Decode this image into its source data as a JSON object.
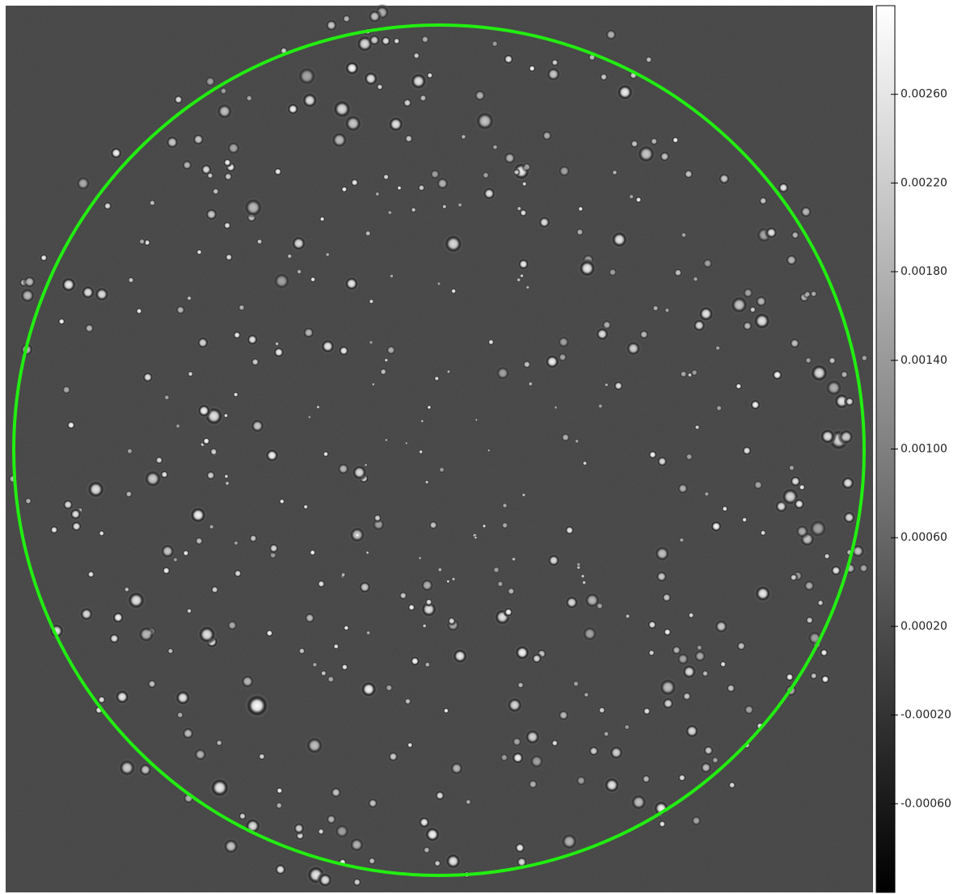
{
  "chart_data": {
    "type": "image",
    "colormap": "gray",
    "zlim": [
      -0.001,
      0.003
    ],
    "zticks": [
      {
        "value": 0.0026,
        "label": "0.00260"
      },
      {
        "value": 0.0022,
        "label": "0.00220"
      },
      {
        "value": 0.0018,
        "label": "0.00180"
      },
      {
        "value": 0.0014,
        "label": "0.00140"
      },
      {
        "value": 0.001,
        "label": "0.00100"
      },
      {
        "value": 0.0006,
        "label": "0.00060"
      },
      {
        "value": 0.0002,
        "label": "0.00020"
      },
      {
        "value": -0.0002,
        "label": "-0.00020"
      },
      {
        "value": -0.0006,
        "label": "-0.00060"
      }
    ]
  }
}
